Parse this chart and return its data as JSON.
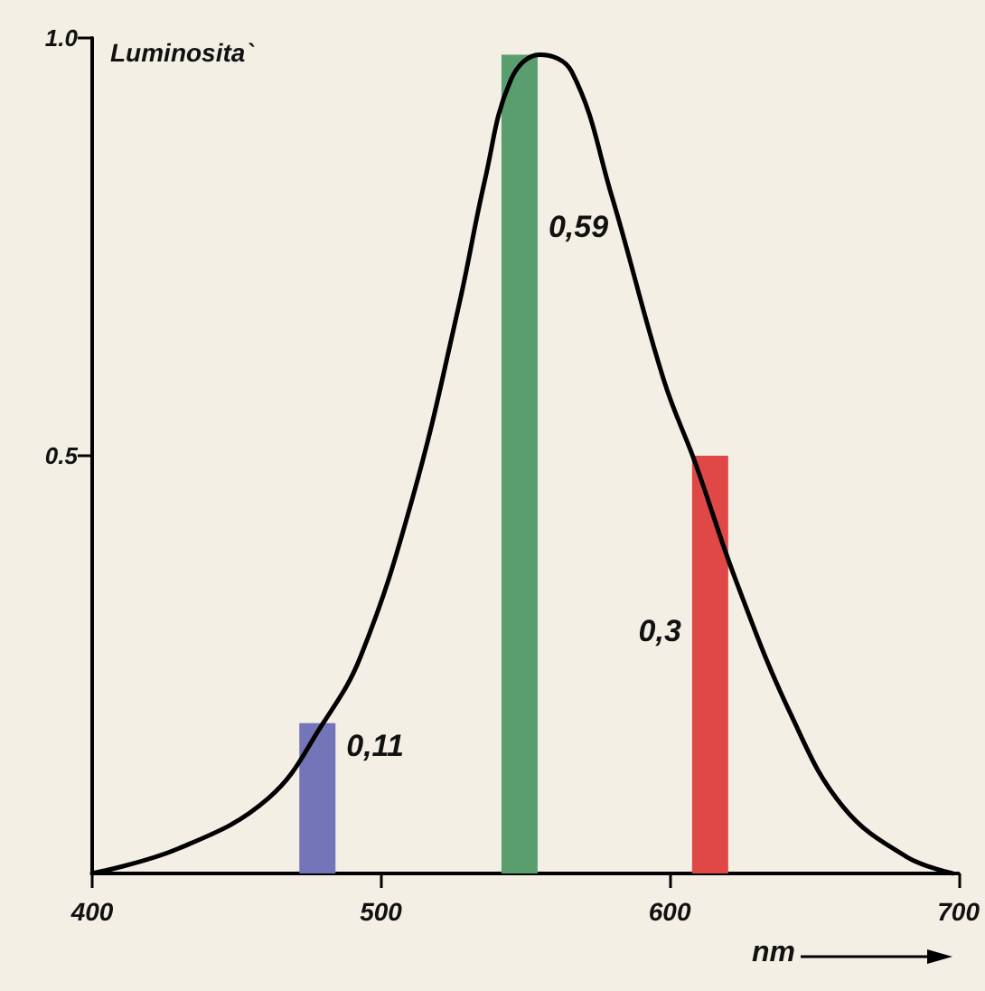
{
  "chart_data": {
    "type": "bar",
    "ylabel": "Luminosita`",
    "xlabel": "nm",
    "xlim": [
      400,
      700
    ],
    "xticks": [
      400,
      500,
      600,
      700
    ],
    "ylim": [
      0,
      1
    ],
    "yticks": [
      {
        "value": 0.5,
        "label": "0.5"
      },
      {
        "value": 1,
        "label": "1.0"
      }
    ],
    "grid": false,
    "marker": "none",
    "line_style": "solid",
    "series": [
      {
        "x": [
          478,
          548,
          614
        ],
        "values": [
          0.18,
          0.98,
          0.5
        ],
        "colors": [
          "#7474b8",
          "#5a9e6e",
          "#e04848"
        ]
      },
      {
        "type": "line",
        "color": "#000000",
        "x": [
          400,
          430,
          461,
          480,
          493,
          511,
          527,
          536,
          545,
          555,
          566,
          580,
          598,
          609,
          623,
          642,
          660,
          682,
          698
        ],
        "values": [
          0.0,
          0.03,
          0.09,
          0.18,
          0.26,
          0.45,
          0.68,
          0.83,
          0.95,
          0.98,
          0.96,
          0.81,
          0.59,
          0.49,
          0.35,
          0.19,
          0.08,
          0.02,
          0.0
        ]
      }
    ],
    "annotations": [
      "0,11",
      "0,59",
      "0,3"
    ]
  }
}
